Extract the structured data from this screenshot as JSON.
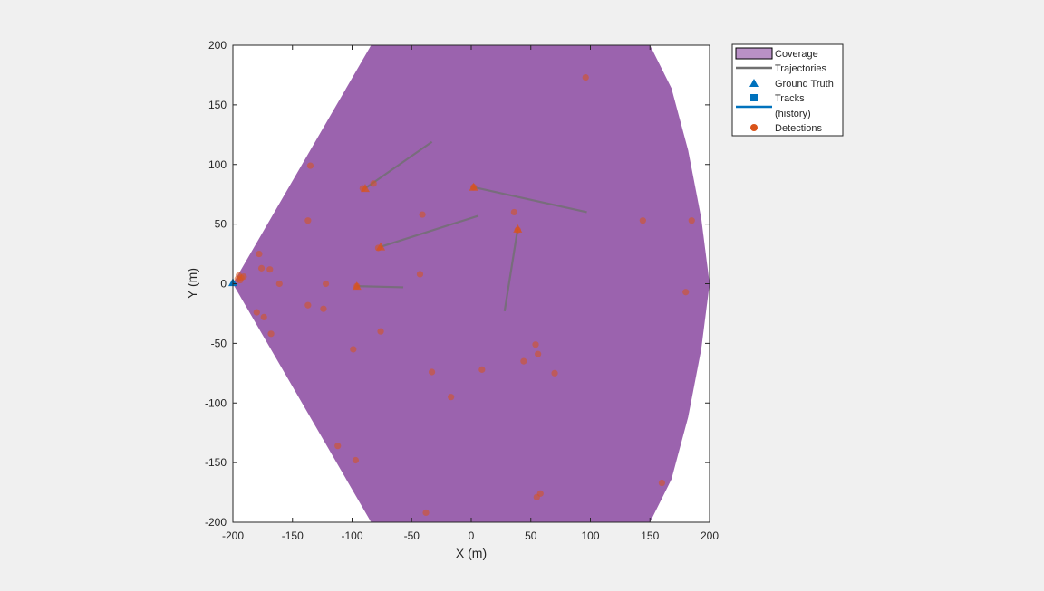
{
  "chart_data": {
    "type": "scatter",
    "xlabel": "X (m)",
    "ylabel": "Y (m)",
    "xlim": [
      -200,
      200
    ],
    "ylim": [
      -200,
      200
    ],
    "x_ticks": [
      -200,
      -150,
      -100,
      -50,
      0,
      50,
      100,
      150,
      200
    ],
    "y_ticks": [
      -200,
      -150,
      -100,
      -50,
      0,
      50,
      100,
      150,
      200
    ],
    "grid": false,
    "legend_position": "outside-top-right",
    "colors": {
      "coverage_fill": "#9b63ae",
      "coverage_edge": "#000000",
      "trajectory": "#6f6f6f",
      "ground_truth": "#0072bd",
      "tracks": "#0072bd",
      "detections": "#d95319"
    },
    "coverage_polygon": [
      [
        -200,
        0
      ],
      [
        -84,
        200
      ],
      [
        150,
        200
      ],
      [
        168,
        164
      ],
      [
        182,
        112
      ],
      [
        193,
        55
      ],
      [
        200,
        0
      ],
      [
        193,
        -55
      ],
      [
        182,
        -112
      ],
      [
        168,
        -164
      ],
      [
        150,
        -200
      ],
      [
        -84,
        -200
      ]
    ],
    "trajectories": [
      [
        [
          -89,
          80
        ],
        [
          -33,
          119
        ]
      ],
      [
        [
          2,
          81
        ],
        [
          97,
          60
        ]
      ],
      [
        [
          -76,
          31
        ],
        [
          6,
          57
        ]
      ],
      [
        [
          -96,
          -2
        ],
        [
          -57,
          -3
        ]
      ],
      [
        [
          39,
          46
        ],
        [
          28,
          -23
        ]
      ]
    ],
    "ground_truth": [
      {
        "x": -89,
        "y": 80
      },
      {
        "x": 2,
        "y": 81
      },
      {
        "x": -76,
        "y": 31
      },
      {
        "x": -96,
        "y": -2
      },
      {
        "x": 39,
        "y": 46
      },
      {
        "x": -200,
        "y": 1
      }
    ],
    "detections": [
      {
        "x": 96,
        "y": 173
      },
      {
        "x": -135,
        "y": 99
      },
      {
        "x": -82,
        "y": 84
      },
      {
        "x": -91,
        "y": 80
      },
      {
        "x": 2,
        "y": 81
      },
      {
        "x": -137,
        "y": 53
      },
      {
        "x": -41,
        "y": 58
      },
      {
        "x": 36,
        "y": 60
      },
      {
        "x": 39,
        "y": 45
      },
      {
        "x": 144,
        "y": 53
      },
      {
        "x": 185,
        "y": 53
      },
      {
        "x": -78,
        "y": 30
      },
      {
        "x": -178,
        "y": 25
      },
      {
        "x": -176,
        "y": 13
      },
      {
        "x": -169,
        "y": 12
      },
      {
        "x": -43,
        "y": 8
      },
      {
        "x": -161,
        "y": 0
      },
      {
        "x": -122,
        "y": 0
      },
      {
        "x": -96,
        "y": -2
      },
      {
        "x": 180,
        "y": -7
      },
      {
        "x": -137,
        "y": -18
      },
      {
        "x": -124,
        "y": -21
      },
      {
        "x": -180,
        "y": -24
      },
      {
        "x": -174,
        "y": -28
      },
      {
        "x": -168,
        "y": -42
      },
      {
        "x": -76,
        "y": -40
      },
      {
        "x": -99,
        "y": -55
      },
      {
        "x": 54,
        "y": -51
      },
      {
        "x": 56,
        "y": -59
      },
      {
        "x": 44,
        "y": -65
      },
      {
        "x": 70,
        "y": -75
      },
      {
        "x": 9,
        "y": -72
      },
      {
        "x": -33,
        "y": -74
      },
      {
        "x": -17,
        "y": -95
      },
      {
        "x": -112,
        "y": -136
      },
      {
        "x": -97,
        "y": -148
      },
      {
        "x": 160,
        "y": -167
      },
      {
        "x": 58,
        "y": -176
      },
      {
        "x": 55,
        "y": -179
      },
      {
        "x": -38,
        "y": -192
      },
      {
        "x": -195,
        "y": 7
      },
      {
        "x": -193,
        "y": 5
      },
      {
        "x": -191,
        "y": 6
      },
      {
        "x": -196,
        "y": 4
      },
      {
        "x": -194,
        "y": 3
      }
    ],
    "legend": [
      {
        "label": "Coverage",
        "marker": "patch"
      },
      {
        "label": "Trajectories",
        "marker": "line"
      },
      {
        "label": "Ground Truth",
        "marker": "triangle"
      },
      {
        "label": "Tracks",
        "marker": "square"
      },
      {
        "label": "(history)",
        "marker": "line-blue"
      },
      {
        "label": "Detections",
        "marker": "circle"
      }
    ]
  }
}
